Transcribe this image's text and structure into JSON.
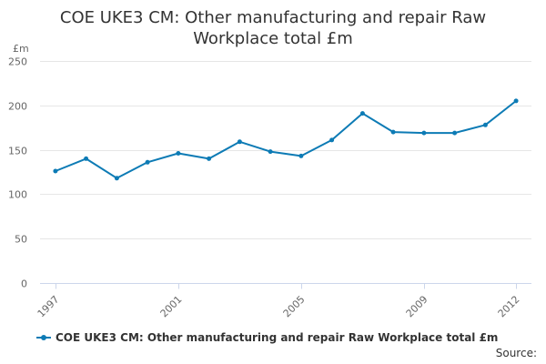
{
  "chart_data": {
    "type": "line",
    "title_lines": [
      "COE UKE3 CM: Other manufacturing and repair Raw",
      "Workplace total £m"
    ],
    "unit_label": "£m",
    "x": [
      1997,
      1998,
      1999,
      2000,
      2001,
      2002,
      2003,
      2004,
      2005,
      2006,
      2007,
      2008,
      2009,
      2010,
      2011,
      2012
    ],
    "x_tick_labels": [
      "1997",
      "2001",
      "2005",
      "2009",
      "2012"
    ],
    "y_ticks": [
      0,
      50,
      100,
      150,
      200,
      250
    ],
    "ylim": [
      0,
      250
    ],
    "grid": true,
    "legend_position": "bottom-left",
    "series": [
      {
        "name": "COE UKE3 CM: Other manufacturing and repair Raw Workplace total £m",
        "color": "#0d7bb5",
        "values": [
          126,
          140,
          118,
          136,
          146,
          140,
          159,
          148,
          143,
          161,
          191,
          170,
          169,
          169,
          178,
          205
        ]
      }
    ]
  },
  "footer": {
    "source_label": "Source:"
  }
}
